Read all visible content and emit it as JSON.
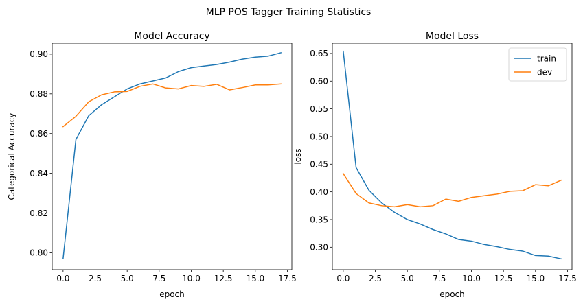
{
  "figure": {
    "title": "MLP POS Tagger Training Statistics"
  },
  "colors": {
    "train": "#1f77b4",
    "dev": "#ff7f0e",
    "axes": "#000000",
    "legend_border": "#cccccc"
  },
  "chart_data": [
    {
      "type": "line",
      "title": "Model Accuracy",
      "xlabel": "epoch",
      "ylabel": "Categorical Accuracy",
      "xlim": [
        -0.85,
        17.85
      ],
      "ylim": [
        0.7915,
        0.9055
      ],
      "xticks": [
        0.0,
        2.5,
        5.0,
        7.5,
        10.0,
        12.5,
        15.0,
        17.5
      ],
      "xtick_labels": [
        "0.0",
        "2.5",
        "5.0",
        "7.5",
        "10.0",
        "12.5",
        "15.0",
        "17.5"
      ],
      "yticks": [
        0.8,
        0.82,
        0.84,
        0.86,
        0.88,
        0.9
      ],
      "ytick_labels": [
        "0.80",
        "0.82",
        "0.84",
        "0.86",
        "0.88",
        "0.90"
      ],
      "grid": false,
      "legend": null,
      "x": [
        0,
        1,
        2,
        3,
        4,
        5,
        6,
        7,
        8,
        9,
        10,
        11,
        12,
        13,
        14,
        15,
        16,
        17
      ],
      "series": [
        {
          "key": "train",
          "values": [
            0.797,
            0.857,
            0.869,
            0.8745,
            0.8785,
            0.8825,
            0.885,
            0.8865,
            0.888,
            0.8912,
            0.8932,
            0.894,
            0.8948,
            0.896,
            0.8975,
            0.8985,
            0.899,
            0.9007
          ]
        },
        {
          "key": "dev",
          "values": [
            0.8635,
            0.8687,
            0.876,
            0.8795,
            0.881,
            0.8812,
            0.8838,
            0.885,
            0.883,
            0.8825,
            0.8842,
            0.8838,
            0.8848,
            0.882,
            0.8832,
            0.8845,
            0.8845,
            0.885
          ]
        }
      ]
    },
    {
      "type": "line",
      "title": "Model Loss",
      "xlabel": "epoch",
      "ylabel": "loss",
      "xlim": [
        -0.85,
        17.85
      ],
      "ylim": [
        0.2595,
        0.6685
      ],
      "xticks": [
        0.0,
        2.5,
        5.0,
        7.5,
        10.0,
        12.5,
        15.0,
        17.5
      ],
      "xtick_labels": [
        "0.0",
        "2.5",
        "5.0",
        "7.5",
        "10.0",
        "12.5",
        "15.0",
        "17.5"
      ],
      "yticks": [
        0.3,
        0.35,
        0.4,
        0.45,
        0.5,
        0.55,
        0.6,
        0.65
      ],
      "ytick_labels": [
        "0.30",
        "0.35",
        "0.40",
        "0.45",
        "0.50",
        "0.55",
        "0.60",
        "0.65"
      ],
      "grid": false,
      "legend": "top-right",
      "x": [
        0,
        1,
        2,
        3,
        4,
        5,
        6,
        7,
        8,
        9,
        10,
        11,
        12,
        13,
        14,
        15,
        16,
        17
      ],
      "series": [
        {
          "key": "train",
          "name": "train",
          "values": [
            0.654,
            0.444,
            0.403,
            0.38,
            0.363,
            0.35,
            0.342,
            0.332,
            0.324,
            0.314,
            0.311,
            0.305,
            0.301,
            0.296,
            0.293,
            0.285,
            0.284,
            0.279
          ]
        },
        {
          "key": "dev",
          "name": "dev",
          "values": [
            0.433,
            0.397,
            0.38,
            0.375,
            0.373,
            0.377,
            0.373,
            0.375,
            0.387,
            0.383,
            0.39,
            0.393,
            0.396,
            0.401,
            0.402,
            0.413,
            0.411,
            0.421
          ]
        }
      ]
    }
  ]
}
